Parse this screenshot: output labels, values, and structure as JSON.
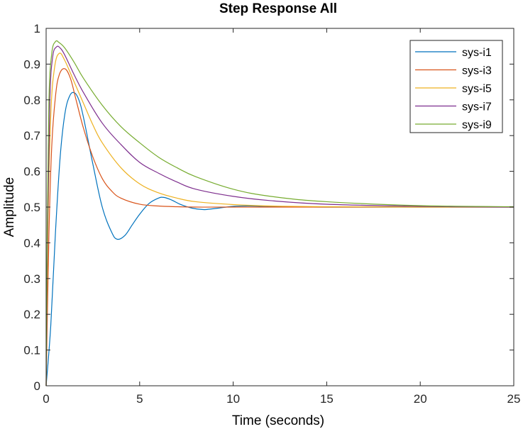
{
  "chart_data": {
    "type": "line",
    "title": "Step Response All",
    "xlabel": "Time (seconds)",
    "ylabel": "Amplitude",
    "xlim": [
      0,
      25
    ],
    "ylim": [
      0,
      1
    ],
    "xticks": [
      0,
      5,
      10,
      15,
      20,
      25
    ],
    "yticks": [
      0,
      0.1,
      0.2,
      0.3,
      0.4,
      0.5,
      0.6,
      0.7,
      0.8,
      0.9,
      1
    ],
    "grid": false,
    "legend_position": "top-right",
    "series": [
      {
        "name": "sys-i1",
        "color": "#0072BD",
        "x": [
          0,
          0.25,
          0.5,
          0.75,
          1.0,
          1.25,
          1.5,
          1.75,
          2.0,
          2.5,
          3.0,
          3.5,
          3.8,
          4.2,
          4.6,
          5.0,
          5.5,
          6.0,
          6.3,
          6.7,
          7.2,
          7.8,
          8.4,
          8.7,
          9.2,
          10,
          11,
          12,
          15,
          20,
          25
        ],
        "y": [
          0,
          0.17,
          0.43,
          0.64,
          0.76,
          0.81,
          0.82,
          0.8,
          0.75,
          0.62,
          0.5,
          0.43,
          0.41,
          0.42,
          0.45,
          0.48,
          0.51,
          0.525,
          0.527,
          0.52,
          0.507,
          0.497,
          0.493,
          0.494,
          0.497,
          0.502,
          0.503,
          0.501,
          0.5,
          0.5,
          0.5
        ]
      },
      {
        "name": "sys-i3",
        "color": "#D95319",
        "x": [
          0,
          0.15,
          0.3,
          0.5,
          0.7,
          1.0,
          1.3,
          1.6,
          2.0,
          2.5,
          3.0,
          3.5,
          4.0,
          5.0,
          6.0,
          7.0,
          8.0,
          10,
          15,
          20,
          25
        ],
        "y": [
          0,
          0.42,
          0.67,
          0.81,
          0.87,
          0.887,
          0.86,
          0.8,
          0.72,
          0.64,
          0.58,
          0.545,
          0.525,
          0.508,
          0.503,
          0.501,
          0.5,
          0.5,
          0.5,
          0.5,
          0.5
        ]
      },
      {
        "name": "sys-i5",
        "color": "#EDB120",
        "x": [
          0,
          0.1,
          0.25,
          0.45,
          0.7,
          1.0,
          1.5,
          2.0,
          2.5,
          3.0,
          4.0,
          5.0,
          6.0,
          7.0,
          8.0,
          10,
          12,
          15,
          20,
          25
        ],
        "y": [
          0,
          0.45,
          0.76,
          0.89,
          0.93,
          0.91,
          0.85,
          0.79,
          0.73,
          0.68,
          0.61,
          0.565,
          0.54,
          0.525,
          0.515,
          0.507,
          0.503,
          0.501,
          0.5,
          0.5
        ]
      },
      {
        "name": "sys-i7",
        "color": "#7E2F8E",
        "x": [
          0,
          0.08,
          0.2,
          0.35,
          0.55,
          0.75,
          1.0,
          1.5,
          2.0,
          3.0,
          4.0,
          5.0,
          6.0,
          7.0,
          8.0,
          10,
          12,
          15,
          20,
          25
        ],
        "y": [
          0,
          0.45,
          0.8,
          0.92,
          0.948,
          0.945,
          0.925,
          0.87,
          0.82,
          0.735,
          0.675,
          0.625,
          0.595,
          0.57,
          0.55,
          0.53,
          0.518,
          0.508,
          0.502,
          0.5
        ]
      },
      {
        "name": "sys-i9",
        "color": "#77AC30",
        "x": [
          0,
          0.06,
          0.15,
          0.3,
          0.5,
          0.7,
          1.0,
          1.5,
          2.0,
          3.0,
          4.0,
          5.0,
          6.0,
          7.0,
          8.0,
          10,
          12,
          15,
          20,
          25
        ],
        "y": [
          0,
          0.45,
          0.8,
          0.93,
          0.963,
          0.96,
          0.945,
          0.905,
          0.86,
          0.785,
          0.725,
          0.68,
          0.64,
          0.61,
          0.585,
          0.55,
          0.53,
          0.515,
          0.504,
          0.501
        ]
      }
    ]
  }
}
